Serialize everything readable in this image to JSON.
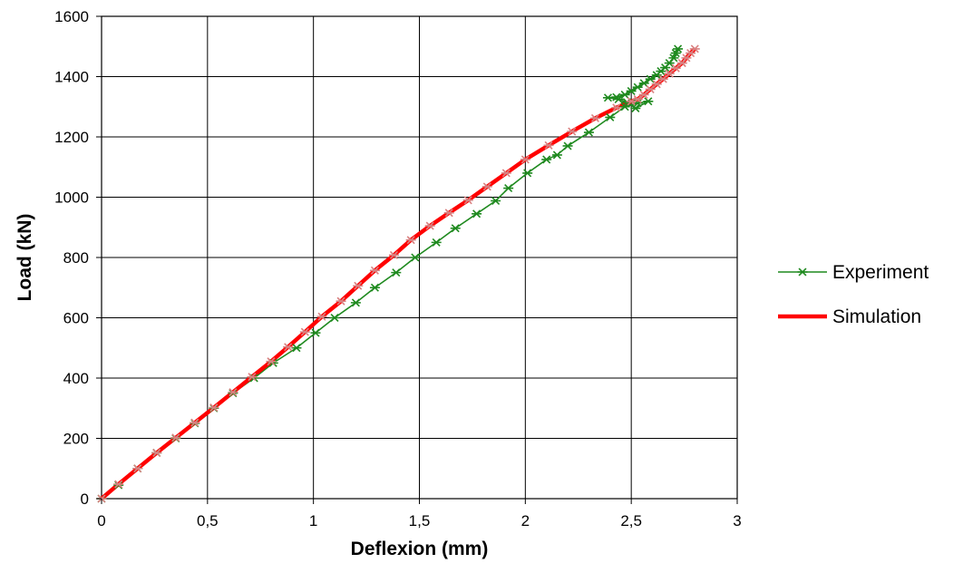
{
  "chart_data": {
    "type": "line",
    "title": "",
    "xlabel": "Deflexion (mm)",
    "ylabel": "Load (kN)",
    "xlim": [
      0,
      3
    ],
    "ylim": [
      0,
      1600
    ],
    "x_ticks": [
      0,
      0.5,
      1,
      1.5,
      2,
      2.5,
      3
    ],
    "x_tick_labels": [
      "0",
      "0,5",
      "1",
      "1,5",
      "2",
      "2,5",
      "3"
    ],
    "y_ticks": [
      0,
      200,
      400,
      600,
      800,
      1000,
      1200,
      1400,
      1600
    ],
    "y_tick_labels": [
      "0",
      "200",
      "400",
      "600",
      "800",
      "1000",
      "1200",
      "1400",
      "1600"
    ],
    "grid": true,
    "legend_position": "right",
    "series": [
      {
        "name": "Experiment",
        "color": "#1f8a1f",
        "marker": "asterisk",
        "points": [
          [
            0,
            0
          ],
          [
            0.08,
            45
          ],
          [
            0.17,
            100
          ],
          [
            0.26,
            152
          ],
          [
            0.35,
            200
          ],
          [
            0.44,
            250
          ],
          [
            0.53,
            300
          ],
          [
            0.62,
            350
          ],
          [
            0.72,
            400
          ],
          [
            0.81,
            450
          ],
          [
            0.92,
            500
          ],
          [
            1.01,
            550
          ],
          [
            1.1,
            600
          ],
          [
            1.2,
            650
          ],
          [
            1.29,
            700
          ],
          [
            1.39,
            750
          ],
          [
            1.48,
            800
          ],
          [
            1.58,
            850
          ],
          [
            1.67,
            897
          ],
          [
            1.77,
            945
          ],
          [
            1.86,
            988
          ],
          [
            1.92,
            1030
          ],
          [
            2.01,
            1080
          ],
          [
            2.1,
            1125
          ],
          [
            2.15,
            1140
          ],
          [
            2.2,
            1170
          ],
          [
            2.3,
            1215
          ],
          [
            2.4,
            1265
          ],
          [
            2.47,
            1300
          ],
          [
            2.53,
            1312
          ],
          [
            2.58,
            1318
          ],
          [
            2.52,
            1295
          ],
          [
            2.48,
            1315
          ],
          [
            2.44,
            1325
          ],
          [
            2.39,
            1330
          ],
          [
            2.43,
            1332
          ],
          [
            2.47,
            1340
          ],
          [
            2.5,
            1352
          ],
          [
            2.53,
            1365
          ],
          [
            2.56,
            1378
          ],
          [
            2.59,
            1392
          ],
          [
            2.62,
            1405
          ],
          [
            2.64,
            1418
          ],
          [
            2.66,
            1430
          ],
          [
            2.68,
            1445
          ],
          [
            2.7,
            1462
          ],
          [
            2.71,
            1478
          ],
          [
            2.72,
            1492
          ]
        ]
      },
      {
        "name": "Simulation",
        "color": "#ff0000",
        "marker_color": "#d98080",
        "marker": "asterisk",
        "points": [
          [
            0,
            0
          ],
          [
            0.08,
            48
          ],
          [
            0.17,
            100
          ],
          [
            0.26,
            152
          ],
          [
            0.35,
            202
          ],
          [
            0.44,
            252
          ],
          [
            0.53,
            302
          ],
          [
            0.62,
            353
          ],
          [
            0.71,
            404
          ],
          [
            0.8,
            455
          ],
          [
            0.88,
            503
          ],
          [
            0.96,
            553
          ],
          [
            1.04,
            604
          ],
          [
            1.13,
            655
          ],
          [
            1.21,
            706
          ],
          [
            1.29,
            757
          ],
          [
            1.38,
            808
          ],
          [
            1.46,
            858
          ],
          [
            1.55,
            905
          ],
          [
            1.64,
            948
          ],
          [
            1.73,
            990
          ],
          [
            1.82,
            1035
          ],
          [
            1.91,
            1080
          ],
          [
            2.0,
            1125
          ],
          [
            2.11,
            1172
          ],
          [
            2.22,
            1218
          ],
          [
            2.33,
            1262
          ],
          [
            2.43,
            1297
          ],
          [
            2.5,
            1318
          ],
          [
            2.53,
            1325
          ],
          [
            2.56,
            1340
          ],
          [
            2.59,
            1358
          ],
          [
            2.62,
            1375
          ],
          [
            2.65,
            1392
          ],
          [
            2.68,
            1410
          ],
          [
            2.71,
            1428
          ],
          [
            2.74,
            1445
          ],
          [
            2.76,
            1462
          ],
          [
            2.78,
            1478
          ],
          [
            2.8,
            1492
          ]
        ]
      }
    ]
  }
}
